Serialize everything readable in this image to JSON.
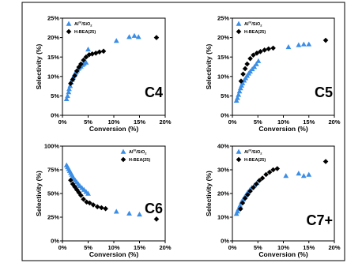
{
  "chart_data": [
    {
      "type": "scatter",
      "panel_label": "C4",
      "xlabel": "Conversion (%)",
      "ylabel": "Selectivity (%)",
      "xlim": [
        0,
        20
      ],
      "ylim": [
        0,
        25
      ],
      "x_ticks": [
        "0%",
        "5%",
        "10%",
        "15%",
        "20%"
      ],
      "y_ticks": [
        "0%",
        "5%",
        "10%",
        "15%",
        "20%",
        "25%"
      ],
      "legend_position": "top-left",
      "series": [
        {
          "name": "Al",
          "name_sup": "IV",
          "name_suffix": "/SiO",
          "name_sub": "2",
          "marker": "triangle",
          "color": "#3b8ee6",
          "points": [
            [
              0.8,
              4.2
            ],
            [
              1.0,
              5.0
            ],
            [
              1.2,
              6.0
            ],
            [
              1.3,
              6.8
            ],
            [
              1.5,
              7.6
            ],
            [
              1.7,
              8.5
            ],
            [
              1.9,
              9.2
            ],
            [
              2.1,
              9.8
            ],
            [
              2.3,
              10.4
            ],
            [
              2.5,
              10.9
            ],
            [
              2.7,
              11.2
            ],
            [
              2.9,
              11.6
            ],
            [
              3.1,
              12.0
            ],
            [
              3.3,
              12.3
            ],
            [
              3.6,
              12.6
            ],
            [
              3.9,
              13.0
            ],
            [
              4.2,
              13.3
            ],
            [
              4.6,
              13.6
            ],
            [
              5.0,
              17.0
            ],
            [
              10.5,
              19.2
            ],
            [
              13.0,
              20.2
            ],
            [
              14.0,
              20.5
            ],
            [
              14.8,
              20.2
            ]
          ]
        },
        {
          "name": "H-BEA(25)",
          "marker": "diamond",
          "color": "#000000",
          "points": [
            [
              1.6,
              8.2
            ],
            [
              2.0,
              9.2
            ],
            [
              2.4,
              10.2
            ],
            [
              2.8,
              11.4
            ],
            [
              3.2,
              12.4
            ],
            [
              3.6,
              13.2
            ],
            [
              4.1,
              14.2
            ],
            [
              4.6,
              15.0
            ],
            [
              5.2,
              15.6
            ],
            [
              5.8,
              15.8
            ],
            [
              6.5,
              16.0
            ],
            [
              7.2,
              16.3
            ],
            [
              8.0,
              16.5
            ],
            [
              18.3,
              20.0
            ]
          ]
        }
      ]
    },
    {
      "type": "scatter",
      "panel_label": "C5",
      "xlabel": "Conversion (%)",
      "ylabel": "Selectivity (%)",
      "xlim": [
        0,
        20
      ],
      "ylim": [
        0,
        25
      ],
      "x_ticks": [
        "0%",
        "5%",
        "10%",
        "15%",
        "20%"
      ],
      "y_ticks": [
        "0%",
        "5%",
        "10%",
        "15%",
        "20%",
        "25%"
      ],
      "legend_position": "top-left",
      "series": [
        {
          "name": "Al",
          "name_sup": "IV",
          "name_suffix": "/SiO",
          "name_sub": "2",
          "marker": "triangle",
          "color": "#3b8ee6",
          "points": [
            [
              0.8,
              3.8
            ],
            [
              1.0,
              4.5
            ],
            [
              1.2,
              5.3
            ],
            [
              1.4,
              6.2
            ],
            [
              1.6,
              7.0
            ],
            [
              1.8,
              7.7
            ],
            [
              2.0,
              8.3
            ],
            [
              2.3,
              9.0
            ],
            [
              2.6,
              9.6
            ],
            [
              2.9,
              10.2
            ],
            [
              3.2,
              10.8
            ],
            [
              3.5,
              11.3
            ],
            [
              3.9,
              11.9
            ],
            [
              4.3,
              12.5
            ],
            [
              4.7,
              13.2
            ],
            [
              5.1,
              14.0
            ],
            [
              11.0,
              17.6
            ],
            [
              13.0,
              18.1
            ],
            [
              14.0,
              18.3
            ],
            [
              15.0,
              18.3
            ]
          ]
        },
        {
          "name": "H-BEA(25)",
          "marker": "diamond",
          "color": "#000000",
          "points": [
            [
              1.7,
              8.8
            ],
            [
              2.1,
              10.6
            ],
            [
              2.5,
              12.0
            ],
            [
              2.9,
              13.2
            ],
            [
              3.5,
              14.6
            ],
            [
              4.1,
              15.5
            ],
            [
              4.8,
              16.0
            ],
            [
              5.5,
              16.4
            ],
            [
              6.3,
              16.8
            ],
            [
              7.1,
              17.1
            ],
            [
              8.0,
              17.3
            ],
            [
              18.3,
              19.3
            ]
          ]
        }
      ]
    },
    {
      "type": "scatter",
      "panel_label": "C6",
      "xlabel": "Conversion (%)",
      "ylabel": "Selectivity (%)",
      "xlim": [
        0,
        20
      ],
      "ylim": [
        0,
        100
      ],
      "x_ticks": [
        "0%",
        "5%",
        "10%",
        "15%",
        "20%"
      ],
      "y_ticks": [
        "0%",
        "25%",
        "50%",
        "75%",
        "100%"
      ],
      "legend_position": "top-right",
      "series": [
        {
          "name": "Al",
          "name_sup": "IV",
          "name_suffix": "/SiO",
          "name_sub": "2",
          "marker": "triangle",
          "color": "#3b8ee6",
          "points": [
            [
              0.8,
              80
            ],
            [
              1.0,
              78
            ],
            [
              1.2,
              76
            ],
            [
              1.4,
              74
            ],
            [
              1.6,
              72
            ],
            [
              1.8,
              70
            ],
            [
              2.0,
              68
            ],
            [
              2.2,
              66
            ],
            [
              2.5,
              64
            ],
            [
              2.8,
              62
            ],
            [
              3.1,
              60
            ],
            [
              3.4,
              58
            ],
            [
              3.8,
              56
            ],
            [
              4.2,
              54
            ],
            [
              4.6,
              52
            ],
            [
              5.0,
              50
            ],
            [
              10.5,
              31
            ],
            [
              13.0,
              29
            ],
            [
              15.0,
              28
            ]
          ]
        },
        {
          "name": "H-BEA(25)",
          "marker": "diamond",
          "color": "#000000",
          "points": [
            [
              1.6,
              64
            ],
            [
              2.0,
              60
            ],
            [
              2.4,
              57
            ],
            [
              2.8,
              54
            ],
            [
              3.2,
              51
            ],
            [
              3.6,
              48
            ],
            [
              4.1,
              44
            ],
            [
              4.7,
              41
            ],
            [
              5.3,
              40
            ],
            [
              6.0,
              38
            ],
            [
              6.8,
              36
            ],
            [
              7.6,
              35
            ],
            [
              8.4,
              34
            ],
            [
              18.3,
              23
            ]
          ]
        }
      ]
    },
    {
      "type": "scatter",
      "panel_label": "C7+",
      "xlabel": "Conversion (%)",
      "ylabel": "Selectivity (%)",
      "xlim": [
        0,
        20
      ],
      "ylim": [
        0,
        40
      ],
      "x_ticks": [
        "0%",
        "5%",
        "10%",
        "15%",
        "20%"
      ],
      "y_ticks": [
        "0%",
        "10%",
        "20%",
        "30%",
        "40%"
      ],
      "legend_position": "top-left",
      "series": [
        {
          "name": "Al",
          "name_sup": "IV",
          "name_suffix": "/SiO",
          "name_sub": "2",
          "marker": "triangle",
          "color": "#3b8ee6",
          "points": [
            [
              0.8,
              11.5
            ],
            [
              1.0,
              12.5
            ],
            [
              1.2,
              13.5
            ],
            [
              1.5,
              15.0
            ],
            [
              1.8,
              16.5
            ],
            [
              2.1,
              17.5
            ],
            [
              2.4,
              18.5
            ],
            [
              2.7,
              19.5
            ],
            [
              3.0,
              20.5
            ],
            [
              3.4,
              21.5
            ],
            [
              3.8,
              22.5
            ],
            [
              4.3,
              23.5
            ],
            [
              4.8,
              24.5
            ],
            [
              10.5,
              27.5
            ],
            [
              13.0,
              28.5
            ],
            [
              14.0,
              27.5
            ],
            [
              15.0,
              28.0
            ]
          ]
        },
        {
          "name": "H-BEA(25)",
          "marker": "diamond",
          "color": "#000000",
          "points": [
            [
              1.6,
              13.5
            ],
            [
              2.0,
              16.0
            ],
            [
              2.5,
              18.0
            ],
            [
              3.0,
              19.5
            ],
            [
              3.5,
              21.0
            ],
            [
              4.1,
              22.5
            ],
            [
              4.7,
              24.0
            ],
            [
              5.3,
              25.5
            ],
            [
              5.9,
              26.5
            ],
            [
              6.6,
              28.0
            ],
            [
              7.3,
              29.0
            ],
            [
              8.0,
              30.0
            ],
            [
              8.8,
              30.5
            ],
            [
              18.3,
              33.5
            ]
          ]
        }
      ]
    }
  ]
}
